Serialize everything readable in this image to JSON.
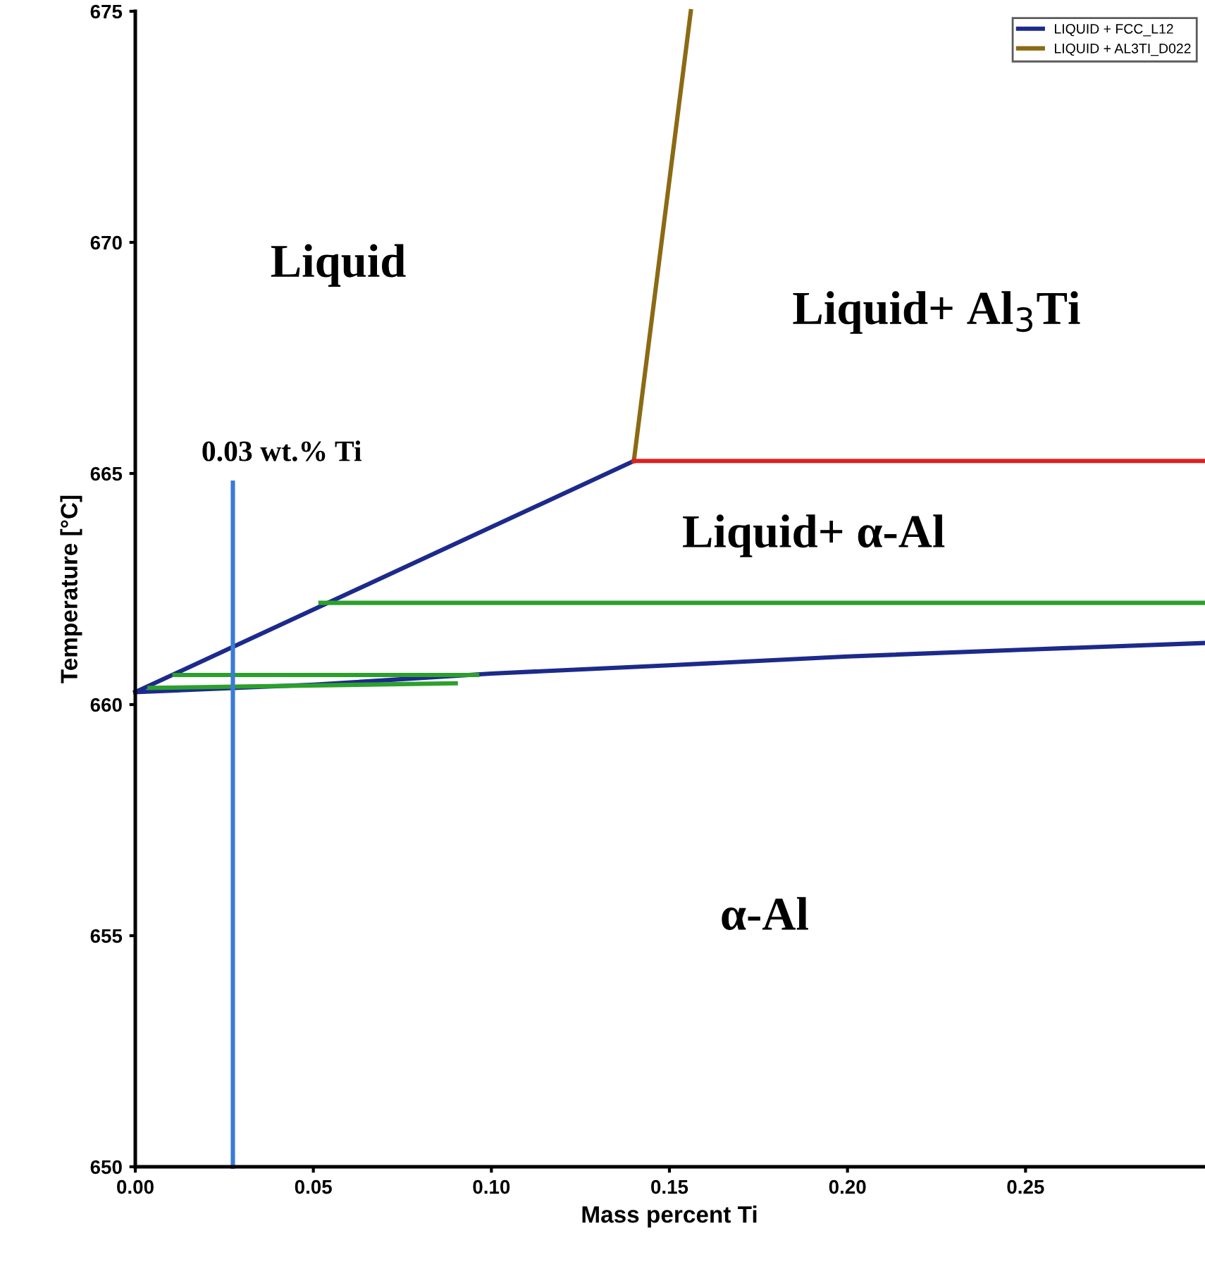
{
  "chart_data": {
    "type": "line",
    "xlabel": "Mass percent Ti",
    "ylabel": "Temperature [°C]",
    "xlim": [
      0,
      0.3
    ],
    "ylim": [
      650,
      675
    ],
    "xticks": [
      {
        "value": 0,
        "label": "0.00"
      },
      {
        "value": 0.05,
        "label": "0.05"
      },
      {
        "value": 0.1,
        "label": "0.10"
      },
      {
        "value": 0.15,
        "label": "0.15"
      },
      {
        "value": 0.2,
        "label": "0.20"
      },
      {
        "value": 0.25,
        "label": "0.25"
      }
    ],
    "yticks": [
      650,
      655,
      660,
      665,
      670,
      675
    ],
    "grid": false,
    "legend": "top right",
    "marker": "none",
    "series": [
      {
        "name": "LIQUID + FCC_L12",
        "color": "#1c2a8c",
        "x": [
          0,
          0.14
        ],
        "values": [
          660.27,
          665.27
        ]
      },
      {
        "color": "#1c2a8c",
        "x": [
          0,
          0.05,
          0.1,
          0.15,
          0.2,
          0.25,
          0.3
        ],
        "values": [
          660.27,
          660.43,
          660.67,
          660.85,
          661.04,
          661.19,
          661.33
        ]
      },
      {
        "name": "LIQUID + AL3TI_D022",
        "color": "#8b6a14",
        "x": [
          0.14,
          0.156
        ],
        "values": [
          665.27,
          675
        ]
      },
      {
        "color": "#e02020",
        "x": [
          0.14,
          0.3
        ],
        "values": [
          665.27,
          665.27
        ]
      },
      {
        "color": "#2ca02c",
        "x": [
          0.052,
          0.3
        ],
        "values": [
          662.2,
          662.2
        ]
      },
      {
        "color": "#2ca02c",
        "x": [
          0.011,
          0.096
        ],
        "values": [
          660.64,
          660.64
        ]
      },
      {
        "color": "#2ca02c",
        "x": [
          0.004,
          0.09
        ],
        "values": [
          660.36,
          660.46
        ]
      },
      {
        "color": "#3a7bd5",
        "x": [
          0.0274,
          0.0274
        ],
        "values": [
          650,
          664.8
        ]
      }
    ],
    "annotations": [
      "0.03 wt.% Ti",
      "Liquid",
      "Liquid+ Al$_{3}$Ti",
      "Liquid+ α-Al",
      "α-Al"
    ]
  }
}
